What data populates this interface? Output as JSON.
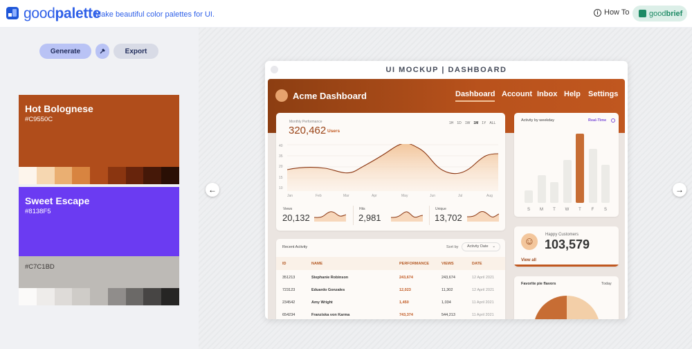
{
  "header": {
    "brand_prefix": "good",
    "brand_suffix": "palette",
    "tagline": "Make beautiful color palettes for UI.",
    "howto": "How To",
    "goodbrief_prefix": "good",
    "goodbrief_suffix": "brief"
  },
  "toolbar": {
    "generate_label": "Generate",
    "export_label": "Export"
  },
  "palettes": [
    {
      "name": "Hot Bolognese",
      "hex": "#C9550C",
      "main_color": "#b04d1b",
      "shades": [
        "#fdf5ec",
        "#f6d7b1",
        "#eaaf72",
        "#d88440",
        "#b04d1b",
        "#8a3510",
        "#67240c",
        "#451808",
        "#2a0f05"
      ]
    },
    {
      "name": "Sweet Escape",
      "hex": "#8138F5",
      "main_color": "#6b3bf2",
      "shades": [
        "#f5f0ff",
        "#dcc7ff",
        "#b592fb",
        "#9561f7",
        "#6b3bf2",
        "#4223c0",
        "#2d1a8c",
        "#1c1060",
        "#0e0833"
      ]
    },
    {
      "name": "",
      "hex": "#C7C1BD",
      "main_color": "#bdbab6",
      "shades": [
        "#fbfaf9",
        "#eeecea",
        "#dedbd8",
        "#cfccc8",
        "#bdbab6",
        "#908d8b",
        "#6b6967",
        "#474544",
        "#262524"
      ]
    }
  ],
  "mockup": {
    "title": "UI MOCKUP | DASHBOARD",
    "app_name": "Acme Dashboard",
    "nav": [
      "Dashboard",
      "Account",
      "Inbox",
      "Help",
      "Settings"
    ],
    "performance": {
      "label": "Monthly Performance",
      "value": "320,462",
      "unit": "Users",
      "ranges": [
        "1H",
        "1D",
        "1W",
        "1M",
        "1Y",
        "ALL"
      ],
      "selected_range": "1M",
      "yticks": [
        "40",
        "35",
        "20",
        "15",
        "10",
        "0"
      ],
      "xticks": [
        "Jan",
        "Feb",
        "Mar",
        "Apr",
        "May",
        "Jun",
        "Jul",
        "Aug"
      ]
    },
    "stats": [
      {
        "label": "Views",
        "value": "20,132"
      },
      {
        "label": "Hits",
        "value": "2,981"
      },
      {
        "label": "Unique",
        "value": "13,702"
      }
    ],
    "weekday": {
      "title": "Activity by weekday",
      "realtime": "Real-Time",
      "days": [
        "S",
        "M",
        "T",
        "W",
        "T",
        "F",
        "S"
      ],
      "values": [
        0.18,
        0.4,
        0.3,
        0.62,
        1.0,
        0.78,
        0.55
      ],
      "highlight_index": 4
    },
    "happy": {
      "label": "Happy Customers",
      "value": "103,579",
      "link": "View all"
    },
    "pie": {
      "title": "Favorite pie flavors",
      "period": "Today"
    },
    "activity": {
      "title": "Recent Activity",
      "sort_label": "Sort by",
      "sort_value": "Activity Date",
      "columns": [
        "ID",
        "NAME",
        "PERFORMANCE",
        "VIEWS",
        "DATE"
      ],
      "rows": [
        [
          "351213",
          "Stephanie Robinson",
          "243,674",
          "243,674",
          "12 April 2021"
        ],
        [
          "723123",
          "Eduardo Gonzales",
          "12,023",
          "11,302",
          "12 April 2021"
        ],
        [
          "234542",
          "Amy Wright",
          "1,450",
          "1,034",
          "11 April 2021"
        ],
        [
          "654234",
          "Franziska von Karma",
          "743,374",
          "544,213",
          "11 April 2021"
        ]
      ]
    }
  }
}
